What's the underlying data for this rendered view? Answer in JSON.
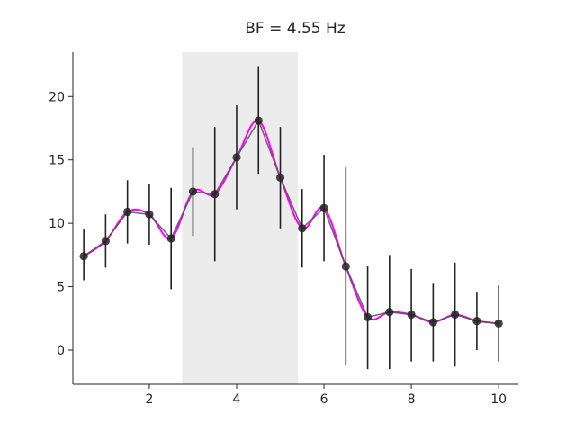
{
  "chart_data": {
    "type": "line",
    "title": "BF = 4.55 Hz",
    "xlabel": "",
    "ylabel": "",
    "xlim": [
      0.25,
      10.45
    ],
    "ylim": [
      -2.7,
      23.5
    ],
    "xticks": [
      2,
      4,
      6,
      8,
      10
    ],
    "yticks": [
      0,
      5,
      10,
      15,
      20
    ],
    "grid": false,
    "shaded_region": {
      "x0": 2.75,
      "x1": 5.4
    },
    "colors": {
      "points": "#222222",
      "line": "#555555",
      "smooth": "#ff00ff",
      "shade": "#ececec",
      "axis": "#262626"
    },
    "series": [
      {
        "x": [
          0.5,
          1.0,
          1.5,
          2.0,
          2.5,
          3.0,
          3.5,
          4.0,
          4.5,
          5.0,
          5.5,
          6.0,
          6.5,
          7.0,
          7.5,
          8.0,
          8.5,
          9.0,
          9.5,
          10.0
        ],
        "y": [
          7.4,
          8.6,
          10.9,
          10.7,
          8.8,
          12.5,
          12.3,
          15.2,
          18.1,
          13.6,
          9.6,
          11.2,
          6.6,
          2.6,
          3.0,
          2.8,
          2.2,
          2.8,
          2.3,
          2.1
        ],
        "err_low": [
          5.5,
          6.5,
          8.4,
          8.3,
          4.8,
          9.0,
          7.0,
          11.1,
          13.9,
          9.6,
          6.5,
          7.0,
          -1.2,
          -1.5,
          -1.5,
          -0.9,
          -0.9,
          -1.3,
          0.0,
          -0.9
        ],
        "err_high": [
          9.5,
          10.7,
          13.4,
          13.1,
          12.8,
          16.0,
          17.6,
          19.3,
          22.4,
          17.6,
          12.7,
          15.4,
          14.4,
          6.6,
          7.5,
          6.4,
          5.3,
          6.9,
          4.6,
          5.1
        ]
      }
    ]
  }
}
